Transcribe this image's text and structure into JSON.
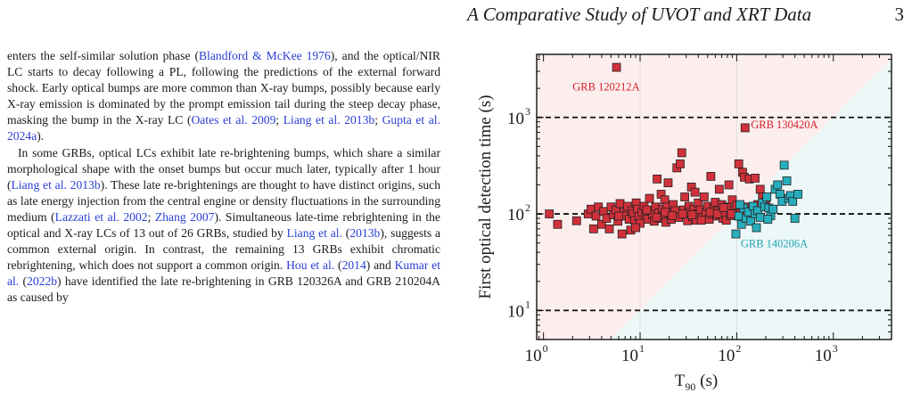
{
  "header": {
    "title": "A Comparative Study of UVOT and XRT Data",
    "page_number": "3"
  },
  "left_column": {
    "paragraphs": [
      [
        {
          "t": "enters the self-similar solution phase ("
        },
        {
          "t": "Blandford & McKee 1976",
          "ref": true
        },
        {
          "t": "), and the optical/NIR LC starts to decay following a PL, following the predictions of the external forward shock. Early optical bumps are more common than X-ray bumps, possibly because early X-ray emission is dominated by the prompt emission tail during the steep decay phase, masking the bump in the X-ray LC ("
        },
        {
          "t": "Oates et al. 2009",
          "ref": true
        },
        {
          "t": "; "
        },
        {
          "t": "Liang et al. 2013b",
          "ref": true
        },
        {
          "t": "; "
        },
        {
          "t": "Gupta et al. 2024a",
          "ref": true
        },
        {
          "t": ")."
        }
      ],
      [
        {
          "t": "In some GRBs, optical LCs exhibit late re-brightening bumps, which share a similar morphological shape with the onset bumps but occur much later, typically after 1 hour ("
        },
        {
          "t": "Liang et al. 2013b",
          "ref": true
        },
        {
          "t": "). These late re-brightenings are thought to have distinct origins, such as late energy injection from the central engine or density fluctuations in the surrounding medium ("
        },
        {
          "t": "Lazzati et al. 2002",
          "ref": true
        },
        {
          "t": "; "
        },
        {
          "t": "Zhang 2007",
          "ref": true
        },
        {
          "t": "). Simultaneous late-time rebrightening in the optical and X-ray LCs of 13 out of 26 GRBs, studied by "
        },
        {
          "t": "Liang et al.",
          "ref": true
        },
        {
          "t": " ("
        },
        {
          "t": "2013b",
          "ref": true
        },
        {
          "t": "), suggests a common external origin. In contrast, the remaining 13 GRBs exhibit chromatic rebrightening, which does not support a common origin. "
        },
        {
          "t": "Hou et al.",
          "ref": true
        },
        {
          "t": " ("
        },
        {
          "t": "2014",
          "ref": true
        },
        {
          "t": ") and "
        },
        {
          "t": "Kumar et al.",
          "ref": true
        },
        {
          "t": " ("
        },
        {
          "t": "2022b",
          "ref": true
        },
        {
          "t": ") have identified the late re-brightening in GRB 120326A and GRB 210204A as caused by"
        }
      ]
    ]
  },
  "colors": {
    "red_marker": "#d0313a",
    "cyan_marker": "#27aebd",
    "red_region": "#fdeeee",
    "cyan_region": "#ecf7f7",
    "red_label": "#d42028",
    "cyan_label": "#1fa3b5",
    "reference_link": "#2a3fd6"
  },
  "chart_data": {
    "type": "scatter",
    "x_scale": "log",
    "y_scale": "log",
    "xlim": [
      0.85,
      4000
    ],
    "ylim": [
      5,
      4500
    ],
    "xlabel_main": "T",
    "xlabel_sub": "90",
    "xlabel_unit": " (s)",
    "ylabel": "First optical detection time (s)",
    "x_ticks": [
      {
        "base": "10",
        "exp": "0",
        "value": 1
      },
      {
        "base": "10",
        "exp": "1",
        "value": 10
      },
      {
        "base": "10",
        "exp": "2",
        "value": 100
      },
      {
        "base": "10",
        "exp": "3",
        "value": 1000
      }
    ],
    "y_ticks": [
      {
        "base": "10",
        "exp": "1",
        "value": 10
      },
      {
        "base": "10",
        "exp": "2",
        "value": 100
      },
      {
        "base": "10",
        "exp": "3",
        "value": 1000
      }
    ],
    "hlines": [
      10,
      100,
      1000
    ],
    "vgrid": [
      10,
      100
    ],
    "grid": true,
    "diagonal": "y = x divides red region (upper-left) from cyan region (lower-right)",
    "annotations": [
      {
        "text": "GRB 120212A",
        "x": 2.0,
        "y": 1900,
        "color": "red"
      },
      {
        "text": "GRB 130420A",
        "x": 140,
        "y": 770,
        "color": "red"
      },
      {
        "text": "GRB 140206A",
        "x": 110,
        "y": 45,
        "color": "cyan"
      }
    ],
    "series": [
      {
        "color": "red",
        "points": [
          [
            5.7,
            3300
          ],
          [
            122,
            780
          ],
          [
            1.15,
            100
          ],
          [
            1.4,
            78
          ],
          [
            2.2,
            85
          ],
          [
            2.9,
            100
          ],
          [
            3.1,
            112
          ],
          [
            3.5,
            95
          ],
          [
            3.7,
            118
          ],
          [
            4.0,
            78
          ],
          [
            4.2,
            106
          ],
          [
            4.5,
            90
          ],
          [
            4.8,
            70
          ],
          [
            5.0,
            118
          ],
          [
            5.3,
            98
          ],
          [
            5.6,
            110
          ],
          [
            5.9,
            84
          ],
          [
            6.2,
            128
          ],
          [
            6.5,
            62
          ],
          [
            6.8,
            104
          ],
          [
            7.1,
            95
          ],
          [
            7.4,
            120
          ],
          [
            7.7,
            88
          ],
          [
            8.0,
            68
          ],
          [
            8.2,
            108
          ],
          [
            8.5,
            100
          ],
          [
            8.8,
            86
          ],
          [
            9.1,
            130
          ],
          [
            9.4,
            112
          ],
          [
            9.7,
            94
          ],
          [
            10.0,
            80
          ],
          [
            10.5,
            104
          ],
          [
            11.0,
            120
          ],
          [
            11.5,
            96
          ],
          [
            12.0,
            88
          ],
          [
            12.5,
            145
          ],
          [
            13.0,
            108
          ],
          [
            13.5,
            98
          ],
          [
            14.0,
            84
          ],
          [
            14.5,
            118
          ],
          [
            15.0,
            230
          ],
          [
            15.5,
            102
          ],
          [
            16.0,
            90
          ],
          [
            16.5,
            160
          ],
          [
            17.0,
            112
          ],
          [
            17.5,
            96
          ],
          [
            18.0,
            140
          ],
          [
            18.5,
            82
          ],
          [
            19.0,
            118
          ],
          [
            19.5,
            210
          ],
          [
            20.0,
            100
          ],
          [
            21.0,
            88
          ],
          [
            22.0,
            125
          ],
          [
            23.0,
            108
          ],
          [
            24.0,
            300
          ],
          [
            25.0,
            92
          ],
          [
            26.0,
            330
          ],
          [
            27.0,
            430
          ],
          [
            28.0,
            110
          ],
          [
            29.0,
            150
          ],
          [
            30.0,
            98
          ],
          [
            31.0,
            85
          ],
          [
            32.0,
            120
          ],
          [
            33.0,
            104
          ],
          [
            34.0,
            190
          ],
          [
            35.0,
            94
          ],
          [
            36.0,
            112
          ],
          [
            37.0,
            168
          ],
          [
            38.0,
            86
          ],
          [
            39.0,
            100
          ],
          [
            40.0,
            130
          ],
          [
            42.0,
            110
          ],
          [
            44.0,
            92
          ],
          [
            46.0,
            150
          ],
          [
            48.0,
            104
          ],
          [
            50.0,
            120
          ],
          [
            52.0,
            88
          ],
          [
            54.0,
            245
          ],
          [
            56.0,
            100
          ],
          [
            58.0,
            115
          ],
          [
            60.0,
            132
          ],
          [
            62.0,
            95
          ],
          [
            64.0,
            108
          ],
          [
            66.0,
            180
          ],
          [
            68.0,
            98
          ],
          [
            70.0,
            125
          ],
          [
            72.0,
            90
          ],
          [
            74.0,
            110
          ],
          [
            76.0,
            102
          ],
          [
            78.0,
            86
          ],
          [
            80.0,
            118
          ],
          [
            83.0,
            200
          ],
          [
            86.0,
            96
          ],
          [
            90.0,
            140
          ],
          [
            95.0,
            110
          ],
          [
            100.0,
            123
          ],
          [
            105.0,
            330
          ],
          [
            110.0,
            102
          ],
          [
            115.0,
            270
          ],
          [
            120.0,
            240
          ],
          [
            125.0,
            118
          ],
          [
            135.0,
            230
          ],
          [
            145.0,
            108
          ],
          [
            155.0,
            235
          ],
          [
            165.0,
            125
          ],
          [
            175.0,
            180
          ],
          [
            185.0,
            150
          ],
          [
            200.0,
            132
          ],
          [
            3.3,
            70
          ],
          [
            6.0,
            95
          ],
          [
            9.0,
            72
          ],
          [
            11.7,
            110
          ],
          [
            14.8,
            92
          ],
          [
            18.2,
            104
          ],
          [
            21.5,
            96
          ],
          [
            27.5,
            100
          ],
          [
            34.5,
            98
          ],
          [
            43.0,
            86
          ],
          [
            53.0,
            104
          ],
          [
            63.0,
            100
          ],
          [
            73.0,
            116
          ],
          [
            88.0,
            100
          ]
        ]
      },
      {
        "color": "cyan",
        "points": [
          [
            105,
            95
          ],
          [
            112,
            78
          ],
          [
            118,
            115
          ],
          [
            125,
            90
          ],
          [
            132,
            105
          ],
          [
            140,
            84
          ],
          [
            148,
            120
          ],
          [
            156,
            100
          ],
          [
            165,
            108
          ],
          [
            175,
            92
          ],
          [
            185,
            130
          ],
          [
            195,
            118
          ],
          [
            205,
            150
          ],
          [
            215,
            115
          ],
          [
            225,
            96
          ],
          [
            238,
            112
          ],
          [
            250,
            180
          ],
          [
            265,
            200
          ],
          [
            280,
            160
          ],
          [
            295,
            135
          ],
          [
            310,
            320
          ],
          [
            330,
            220
          ],
          [
            345,
            145
          ],
          [
            360,
            155
          ],
          [
            380,
            135
          ],
          [
            400,
            90
          ],
          [
            430,
            160
          ],
          [
            98,
            62
          ],
          [
            108,
            125
          ],
          [
            160,
            72
          ],
          [
            210,
            88
          ]
        ]
      }
    ]
  }
}
